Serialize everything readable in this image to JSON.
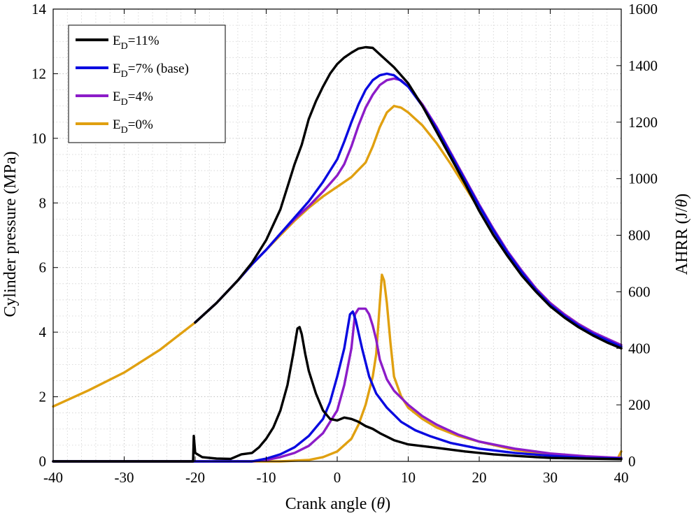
{
  "chart_data": {
    "type": "line",
    "xlabel_prefix": "Crank angle (",
    "xlabel_var": "θ",
    "xlabel_suffix": ")",
    "ylabel_left": "Cylinder pressure (MPa)",
    "ylabel_right_prefix": "AHRR (J/",
    "ylabel_right_var": "θ",
    "ylabel_right_suffix": ")",
    "xlim": [
      -40,
      40
    ],
    "ylim_left": [
      0,
      14
    ],
    "ylim_right": [
      0,
      1600
    ],
    "x_ticks": [
      "-40",
      "-30",
      "-20",
      "-10",
      "0",
      "10",
      "20",
      "30",
      "40"
    ],
    "y_left_ticks": [
      "0",
      "2",
      "4",
      "6",
      "8",
      "10",
      "12",
      "14"
    ],
    "y_right_ticks": [
      "0",
      "200",
      "400",
      "600",
      "800",
      "1000",
      "1200",
      "1400",
      "1600"
    ],
    "grid": true,
    "legend_position": "top-left",
    "series": [
      {
        "name": "E_D=11%",
        "legend_main": "E",
        "legend_sub": "D",
        "legend_rest": "=11%",
        "color": "#000000",
        "pressure": [
          [
            -20,
            4.3
          ],
          [
            -17,
            4.9
          ],
          [
            -14,
            5.6
          ],
          [
            -12,
            6.15
          ],
          [
            -10,
            6.85
          ],
          [
            -8,
            7.8
          ],
          [
            -6,
            9.2
          ],
          [
            -5,
            9.8
          ],
          [
            -4,
            10.6
          ],
          [
            -3,
            11.15
          ],
          [
            -2,
            11.6
          ],
          [
            -1,
            12.0
          ],
          [
            0,
            12.3
          ],
          [
            1,
            12.5
          ],
          [
            2,
            12.65
          ],
          [
            3,
            12.78
          ],
          [
            4,
            12.82
          ],
          [
            5,
            12.8
          ],
          [
            6,
            12.6
          ],
          [
            8,
            12.2
          ],
          [
            10,
            11.7
          ],
          [
            12,
            11.0
          ],
          [
            14,
            10.2
          ],
          [
            16,
            9.4
          ],
          [
            18,
            8.6
          ],
          [
            20,
            7.75
          ],
          [
            22,
            7.0
          ],
          [
            24,
            6.35
          ],
          [
            26,
            5.75
          ],
          [
            28,
            5.25
          ],
          [
            30,
            4.8
          ],
          [
            32,
            4.45
          ],
          [
            34,
            4.15
          ],
          [
            36,
            3.9
          ],
          [
            38,
            3.68
          ],
          [
            40,
            3.5
          ]
        ],
        "ahrr": [
          [
            -40,
            0
          ],
          [
            -20.3,
            0
          ],
          [
            -20.2,
            90
          ],
          [
            -20.0,
            30
          ],
          [
            -19,
            15
          ],
          [
            -17,
            10
          ],
          [
            -15,
            9
          ],
          [
            -13.5,
            25
          ],
          [
            -12,
            30
          ],
          [
            -11,
            50
          ],
          [
            -10,
            80
          ],
          [
            -9,
            120
          ],
          [
            -8,
            180
          ],
          [
            -7,
            270
          ],
          [
            -6.2,
            380
          ],
          [
            -5.6,
            470
          ],
          [
            -5.3,
            475
          ],
          [
            -5,
            450
          ],
          [
            -4.5,
            380
          ],
          [
            -4,
            320
          ],
          [
            -3,
            240
          ],
          [
            -2,
            180
          ],
          [
            -1,
            150
          ],
          [
            0,
            145
          ],
          [
            1,
            155
          ],
          [
            2,
            150
          ],
          [
            3,
            140
          ],
          [
            4,
            125
          ],
          [
            5,
            115
          ],
          [
            6,
            100
          ],
          [
            8,
            75
          ],
          [
            10,
            60
          ],
          [
            14,
            48
          ],
          [
            18,
            35
          ],
          [
            22,
            25
          ],
          [
            26,
            18
          ],
          [
            30,
            12
          ],
          [
            35,
            10
          ],
          [
            40,
            8
          ]
        ]
      },
      {
        "name": "E_D=7% (base)",
        "legend_main": "E",
        "legend_sub": "D",
        "legend_rest": "=7% (base)",
        "color": "#0a0ae0",
        "pressure": [
          [
            -20,
            4.3
          ],
          [
            -17,
            4.9
          ],
          [
            -14,
            5.6
          ],
          [
            -12,
            6.1
          ],
          [
            -10,
            6.55
          ],
          [
            -8,
            7.05
          ],
          [
            -6,
            7.55
          ],
          [
            -4,
            8.05
          ],
          [
            -2,
            8.65
          ],
          [
            0,
            9.35
          ],
          [
            1,
            9.9
          ],
          [
            2,
            10.5
          ],
          [
            3,
            11.05
          ],
          [
            4,
            11.5
          ],
          [
            5,
            11.8
          ],
          [
            6,
            11.95
          ],
          [
            7,
            12.0
          ],
          [
            8,
            11.95
          ],
          [
            10,
            11.6
          ],
          [
            12,
            11.0
          ],
          [
            14,
            10.3
          ],
          [
            16,
            9.5
          ],
          [
            18,
            8.7
          ],
          [
            20,
            7.9
          ],
          [
            22,
            7.15
          ],
          [
            24,
            6.45
          ],
          [
            26,
            5.85
          ],
          [
            28,
            5.3
          ],
          [
            30,
            4.85
          ],
          [
            32,
            4.5
          ],
          [
            34,
            4.2
          ],
          [
            36,
            3.95
          ],
          [
            38,
            3.75
          ],
          [
            40,
            3.55
          ]
        ],
        "ahrr": [
          [
            -40,
            0
          ],
          [
            -12,
            0
          ],
          [
            -10,
            10
          ],
          [
            -8,
            25
          ],
          [
            -6,
            50
          ],
          [
            -4,
            90
          ],
          [
            -2,
            150
          ],
          [
            -1,
            210
          ],
          [
            0,
            300
          ],
          [
            1,
            400
          ],
          [
            1.8,
            520
          ],
          [
            2.2,
            530
          ],
          [
            2.6,
            500
          ],
          [
            3.5,
            400
          ],
          [
            4.5,
            300
          ],
          [
            5.5,
            240
          ],
          [
            7,
            190
          ],
          [
            9,
            140
          ],
          [
            11,
            110
          ],
          [
            13,
            90
          ],
          [
            16,
            65
          ],
          [
            20,
            45
          ],
          [
            25,
            30
          ],
          [
            30,
            20
          ],
          [
            35,
            12
          ],
          [
            40,
            10
          ]
        ]
      },
      {
        "name": "E_D=4%",
        "legend_main": "E",
        "legend_sub": "D",
        "legend_rest": "=4%",
        "color": "#8c1cc8",
        "pressure": [
          [
            -20,
            4.3
          ],
          [
            -17,
            4.9
          ],
          [
            -14,
            5.6
          ],
          [
            -12,
            6.1
          ],
          [
            -10,
            6.55
          ],
          [
            -8,
            7.05
          ],
          [
            -6,
            7.5
          ],
          [
            -4,
            7.9
          ],
          [
            -2,
            8.35
          ],
          [
            0,
            8.85
          ],
          [
            1,
            9.2
          ],
          [
            2,
            9.75
          ],
          [
            3,
            10.4
          ],
          [
            4,
            10.95
          ],
          [
            5,
            11.35
          ],
          [
            6,
            11.65
          ],
          [
            7,
            11.8
          ],
          [
            8,
            11.85
          ],
          [
            9,
            11.8
          ],
          [
            10,
            11.6
          ],
          [
            12,
            11.05
          ],
          [
            14,
            10.35
          ],
          [
            16,
            9.55
          ],
          [
            18,
            8.75
          ],
          [
            20,
            7.95
          ],
          [
            22,
            7.2
          ],
          [
            24,
            6.5
          ],
          [
            26,
            5.9
          ],
          [
            28,
            5.35
          ],
          [
            30,
            4.9
          ],
          [
            32,
            4.55
          ],
          [
            34,
            4.25
          ],
          [
            36,
            4.0
          ],
          [
            38,
            3.8
          ],
          [
            40,
            3.6
          ]
        ],
        "ahrr": [
          [
            -40,
            0
          ],
          [
            -12,
            0
          ],
          [
            -10,
            5
          ],
          [
            -8,
            15
          ],
          [
            -6,
            30
          ],
          [
            -4,
            55
          ],
          [
            -2,
            100
          ],
          [
            0,
            180
          ],
          [
            1,
            270
          ],
          [
            2,
            400
          ],
          [
            2.5,
            520
          ],
          [
            3,
            540
          ],
          [
            4,
            540
          ],
          [
            4.5,
            520
          ],
          [
            5,
            480
          ],
          [
            5.5,
            430
          ],
          [
            6,
            360
          ],
          [
            7,
            290
          ],
          [
            8,
            250
          ],
          [
            10,
            200
          ],
          [
            12,
            160
          ],
          [
            14,
            130
          ],
          [
            17,
            95
          ],
          [
            20,
            70
          ],
          [
            25,
            45
          ],
          [
            30,
            28
          ],
          [
            35,
            18
          ],
          [
            40,
            12
          ]
        ]
      },
      {
        "name": "E_D=0%",
        "legend_main": "E",
        "legend_sub": "D",
        "legend_rest": "=0%",
        "color": "#e0a010",
        "pressure": [
          [
            -40,
            1.7
          ],
          [
            -35,
            2.2
          ],
          [
            -30,
            2.75
          ],
          [
            -25,
            3.45
          ],
          [
            -20,
            4.3
          ],
          [
            -17,
            4.9
          ],
          [
            -14,
            5.6
          ],
          [
            -12,
            6.1
          ],
          [
            -10,
            6.55
          ],
          [
            -8,
            7.0
          ],
          [
            -6,
            7.45
          ],
          [
            -4,
            7.85
          ],
          [
            -2,
            8.2
          ],
          [
            0,
            8.5
          ],
          [
            2,
            8.8
          ],
          [
            4,
            9.25
          ],
          [
            5,
            9.75
          ],
          [
            6,
            10.35
          ],
          [
            7,
            10.8
          ],
          [
            8,
            11.0
          ],
          [
            9,
            10.95
          ],
          [
            10,
            10.8
          ],
          [
            12,
            10.4
          ],
          [
            14,
            9.85
          ],
          [
            16,
            9.2
          ],
          [
            18,
            8.5
          ],
          [
            20,
            7.8
          ],
          [
            22,
            7.1
          ],
          [
            24,
            6.45
          ],
          [
            26,
            5.85
          ],
          [
            28,
            5.35
          ],
          [
            30,
            4.9
          ],
          [
            32,
            4.55
          ],
          [
            34,
            4.25
          ],
          [
            36,
            4.0
          ],
          [
            38,
            3.75
          ],
          [
            40,
            3.5
          ]
        ],
        "ahrr": [
          [
            -40,
            0
          ],
          [
            -8,
            0
          ],
          [
            -4,
            5
          ],
          [
            -2,
            15
          ],
          [
            0,
            35
          ],
          [
            2,
            80
          ],
          [
            3,
            130
          ],
          [
            4,
            200
          ],
          [
            5,
            300
          ],
          [
            5.5,
            380
          ],
          [
            6,
            560
          ],
          [
            6.3,
            660
          ],
          [
            6.6,
            640
          ],
          [
            7,
            560
          ],
          [
            7.5,
            420
          ],
          [
            8,
            300
          ],
          [
            9,
            230
          ],
          [
            10,
            190
          ],
          [
            12,
            150
          ],
          [
            14,
            120
          ],
          [
            17,
            90
          ],
          [
            20,
            70
          ],
          [
            25,
            40
          ],
          [
            30,
            25
          ],
          [
            35,
            15
          ],
          [
            39.5,
            10
          ],
          [
            40,
            35
          ]
        ]
      }
    ]
  }
}
